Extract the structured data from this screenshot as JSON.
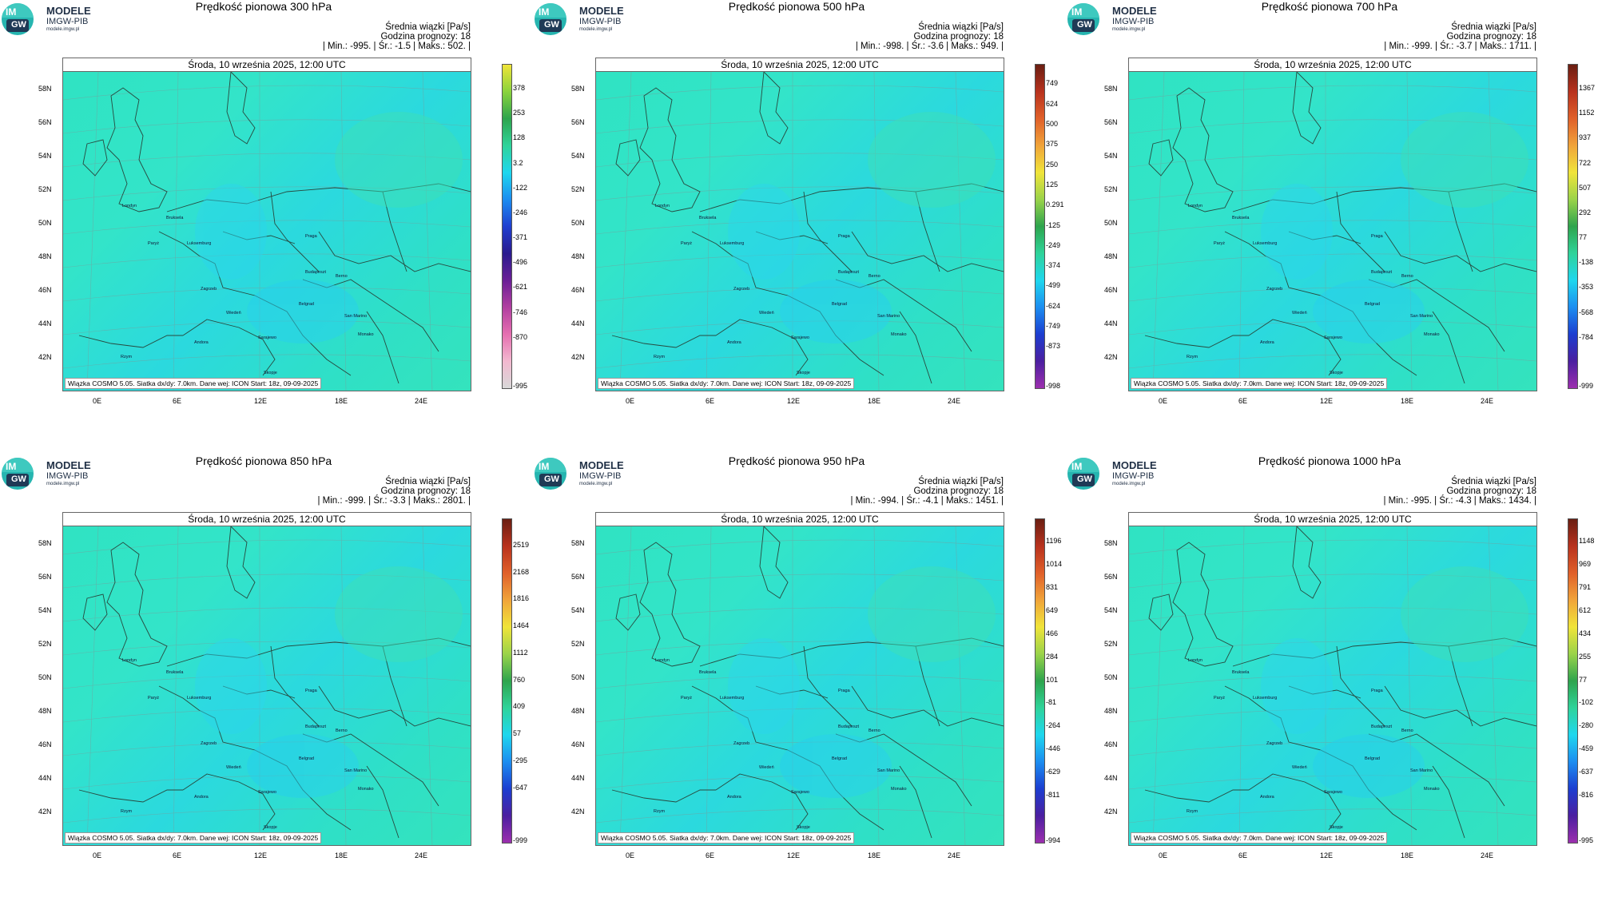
{
  "logo": {
    "line1": "MODELE",
    "line2": "IMGW-PIB",
    "line3": "modele.imgw.pl",
    "mark_top": "IM",
    "mark_bottom": "GW"
  },
  "common": {
    "date": "Środa, 10 września 2025, 12:00 UTC",
    "info_line1": "Średnia wiązki [Pa/s]",
    "info_line2": "Godzina prognozy: 18",
    "credit": "Wiązka COSMO 5.05. Siatka dx/dy: 7.0km. Dane wej: ICON Start: 18z, 09-09-2025",
    "lat_labels": [
      "58N",
      "56N",
      "54N",
      "52N",
      "50N",
      "48N",
      "46N",
      "44N",
      "42N"
    ],
    "lon_labels": [
      "0E",
      "6E",
      "12E",
      "18E",
      "24E"
    ],
    "cities": [
      "Londyn",
      "Bruksela",
      "Paryż",
      "Luksemburg",
      "Praga",
      "Wiedeń",
      "Budapeszt",
      "Berno",
      "Zagrzeb",
      "Belgrad",
      "San Marino",
      "Sarajewo",
      "Monako",
      "Andora",
      "Skopje",
      "Rzym"
    ]
  },
  "panels": [
    {
      "title": "Prędkość pionowa 300 hPa",
      "stats": "| Min.:   -995. | Śr.:    -1.5 | Maks.:    502. |",
      "colorbar": [
        "378",
        "253",
        "128",
        "3.2",
        "-122",
        "-246",
        "-371",
        "-496",
        "-621",
        "-746",
        "-870",
        "-995"
      ]
    },
    {
      "title": "Prędkość pionowa 500 hPa",
      "stats": "| Min.:   -998. | Śr.:    -3.6 | Maks.:    949. |",
      "colorbar": [
        "749",
        "624",
        "500",
        "375",
        "250",
        "125",
        "0.291",
        "-125",
        "-249",
        "-374",
        "-499",
        "-624",
        "-749",
        "-873",
        "-998"
      ]
    },
    {
      "title": "Prędkość pionowa 700 hPa",
      "stats": "| Min.:   -999. | Śr.:    -3.7 | Maks.:   1711. |",
      "colorbar": [
        "1367",
        "1152",
        "937",
        "722",
        "507",
        "292",
        "77",
        "-138",
        "-353",
        "-568",
        "-784",
        "-999"
      ]
    },
    {
      "title": "Prędkość pionowa 850 hPa",
      "stats": "| Min.:   -999. | Śr.:    -3.3 | Maks.:   2801. |",
      "colorbar": [
        "2519",
        "2168",
        "1816",
        "1464",
        "1112",
        "760",
        "409",
        "57",
        "-295",
        "-647",
        "-999"
      ]
    },
    {
      "title": "Prędkość pionowa 950 hPa",
      "stats": "| Min.:   -994. | Śr.:    -4.1 | Maks.:   1451. |",
      "colorbar": [
        "1196",
        "1014",
        "831",
        "649",
        "466",
        "284",
        "101",
        "-81",
        "-264",
        "-446",
        "-629",
        "-811",
        "-994"
      ]
    },
    {
      "title": "Prędkość pionowa 1000 hPa",
      "stats": "| Min.:   -995. | Śr.:    -4.3 | Maks.:   1434. |",
      "colorbar": [
        "1148",
        "969",
        "791",
        "612",
        "434",
        "255",
        "77",
        "-102",
        "-280",
        "-459",
        "-637",
        "-816",
        "-995"
      ]
    }
  ],
  "colors": {
    "colorbar_300": [
      "#d8d8d8",
      "#f2b8cf",
      "#e56fb0",
      "#b13fa0",
      "#6a1f96",
      "#2a1b8e",
      "#1f3fd0",
      "#1c8df0",
      "#1fd7ee",
      "#2fd39a",
      "#2ea44d",
      "#8ad33c",
      "#f0e43a"
    ],
    "colorbar_main": [
      "#9c2fae",
      "#4b1fa0",
      "#1c3ed0",
      "#1c8df0",
      "#1fd7ee",
      "#2fd39a",
      "#2ea44d",
      "#9ad34a",
      "#f0e43a",
      "#f0a43a",
      "#e0602a",
      "#b8321e",
      "#6a1e12"
    ]
  }
}
